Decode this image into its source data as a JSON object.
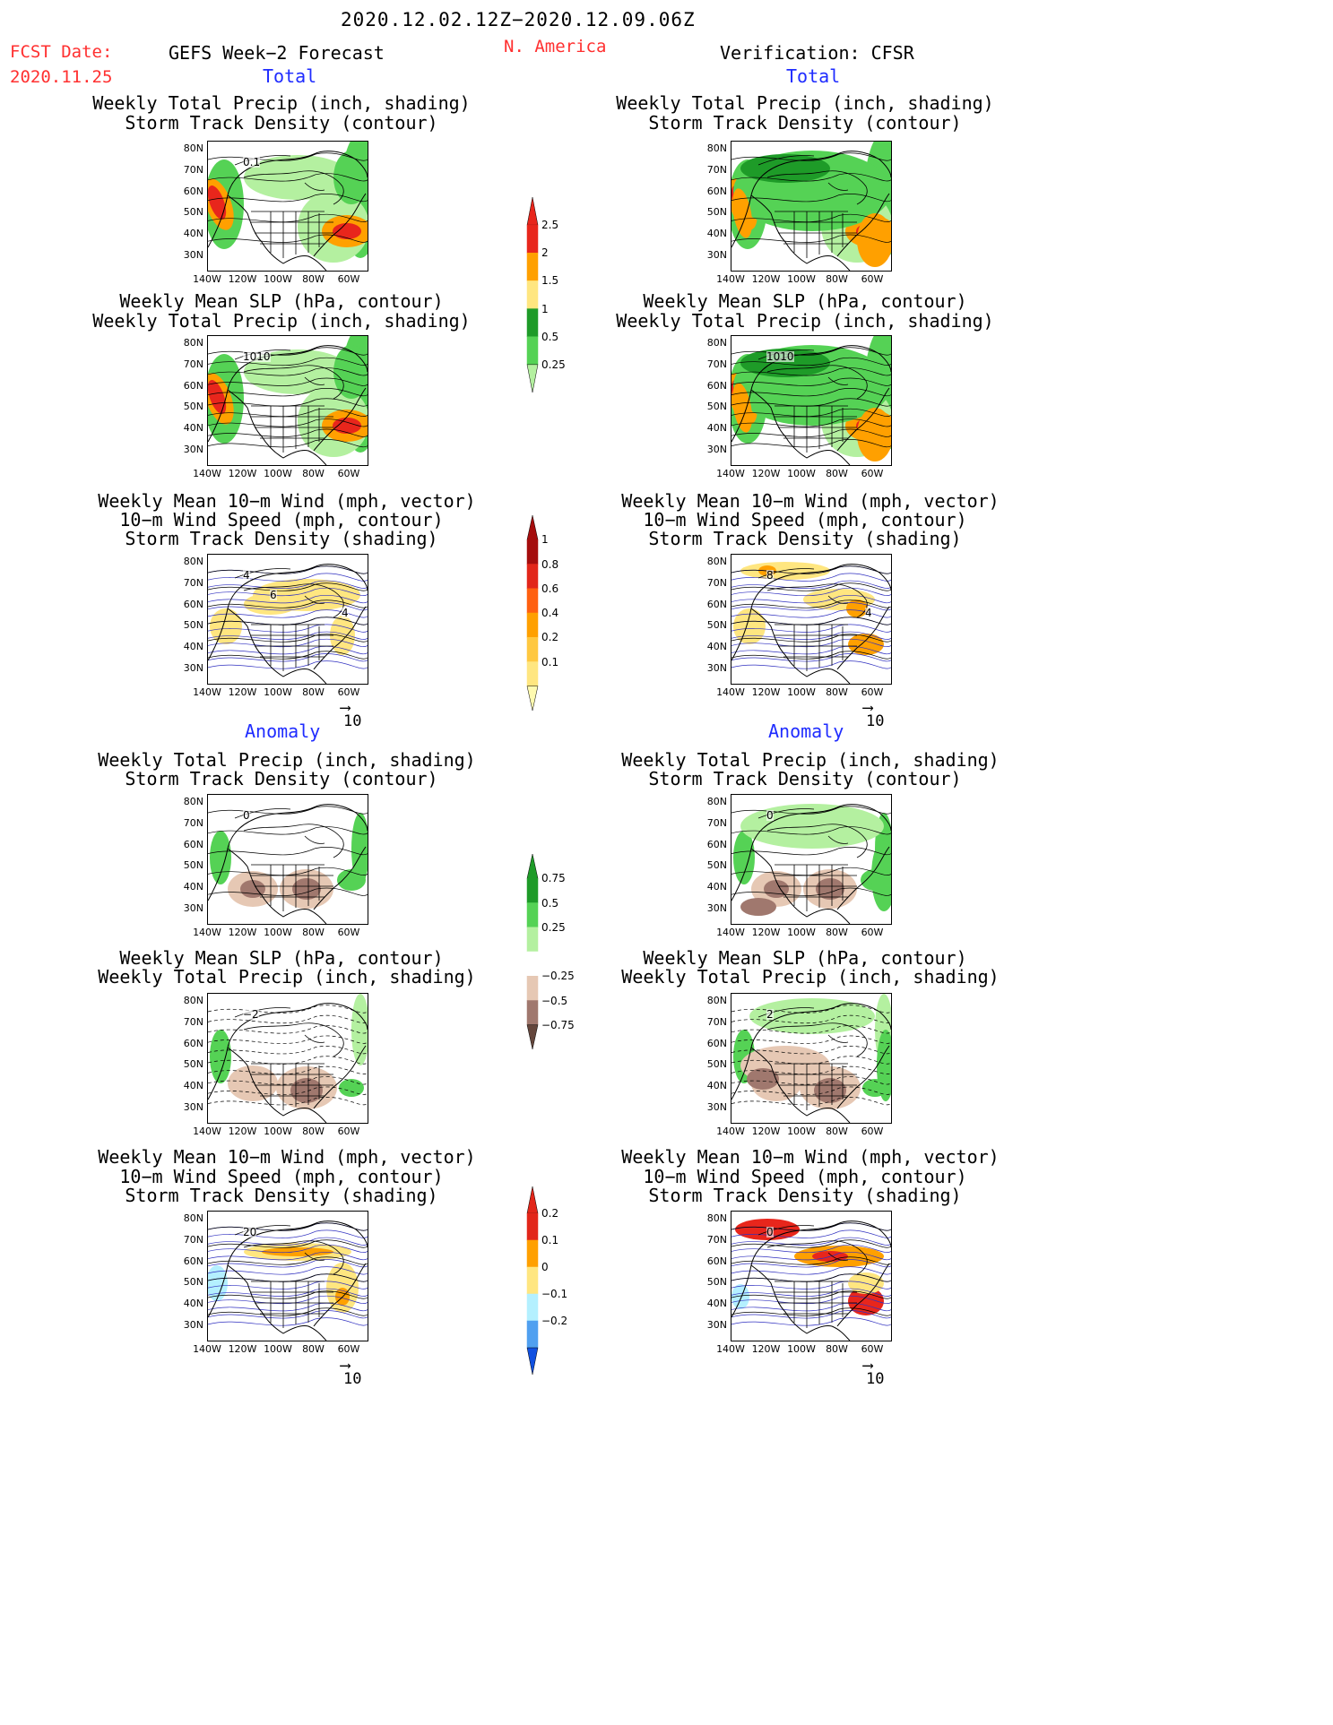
{
  "header": {
    "date_range": "2020.12.02.12Z−2020.12.09.06Z",
    "fcst_label": "FCST Date:",
    "fcst_date": "2020.11.25",
    "left_title": "GEFS Week−2 Forecast",
    "region": "N. America",
    "right_title": "Verification: CFSR",
    "total_label": "Total",
    "anomaly_label": "Anomaly"
  },
  "panel_titles": {
    "precip_track": [
      "Weekly Total Precip (inch, shading)",
      "Storm Track Density (contour)"
    ],
    "slp_precip": [
      "Weekly Mean SLP (hPa, contour)",
      "Weekly Total Precip (inch, shading)"
    ],
    "wind_track": [
      "Weekly Mean 10−m Wind (mph, vector)",
      "10−m Wind Speed (mph, contour)",
      "Storm Track Density (shading)"
    ]
  },
  "axes": {
    "lat_labels": [
      "80N",
      "70N",
      "60N",
      "50N",
      "40N",
      "30N"
    ],
    "lon_labels": [
      "140W",
      "120W",
      "100W",
      "80W",
      "60W"
    ]
  },
  "vector_ref": "10",
  "contour_labels": {
    "p1_left": "0.1",
    "p2_left": "1010",
    "p2_right": "1010",
    "p3_left": [
      "4",
      "4",
      "6"
    ],
    "p3_right": [
      "8",
      "4"
    ],
    "p4_left": "0",
    "p4_right": "0",
    "p5_left": "−2",
    "p5_right": "2",
    "p6_left": "20",
    "p6_right": "0"
  },
  "colorbars": {
    "precip_total": {
      "labels": [
        "2.5",
        "2",
        "1.5",
        "1",
        "0.5",
        "0.25"
      ],
      "colors": [
        "#e8261c",
        "#ffa000",
        "#ffe680",
        "#1e9b28",
        "#55d255",
        "#b4f0a0"
      ]
    },
    "track_total": {
      "labels": [
        "1",
        "0.8",
        "0.6",
        "0.4",
        "0.2",
        "0.1"
      ],
      "colors": [
        "#a50d0d",
        "#e2261a",
        "#ff6010",
        "#ffa000",
        "#ffc840",
        "#ffe680",
        "#fffab0"
      ]
    },
    "precip_anom": {
      "labels": [
        "0.75",
        "0.5",
        "0.25",
        "−0.25",
        "−0.5",
        "−0.75"
      ],
      "colors": [
        "#1e9b28",
        "#55d255",
        "#b4f0a0",
        "#ffffff",
        "#e6c8b4",
        "#a0786e",
        "#64463c"
      ]
    },
    "track_anom": {
      "labels": [
        "0.2",
        "0.1",
        "0",
        "−0.1",
        "−0.2"
      ],
      "colors": [
        "#e2261a",
        "#ffa000",
        "#ffe680",
        "#b4f0ff",
        "#50a0f0",
        "#1050e0"
      ]
    }
  }
}
